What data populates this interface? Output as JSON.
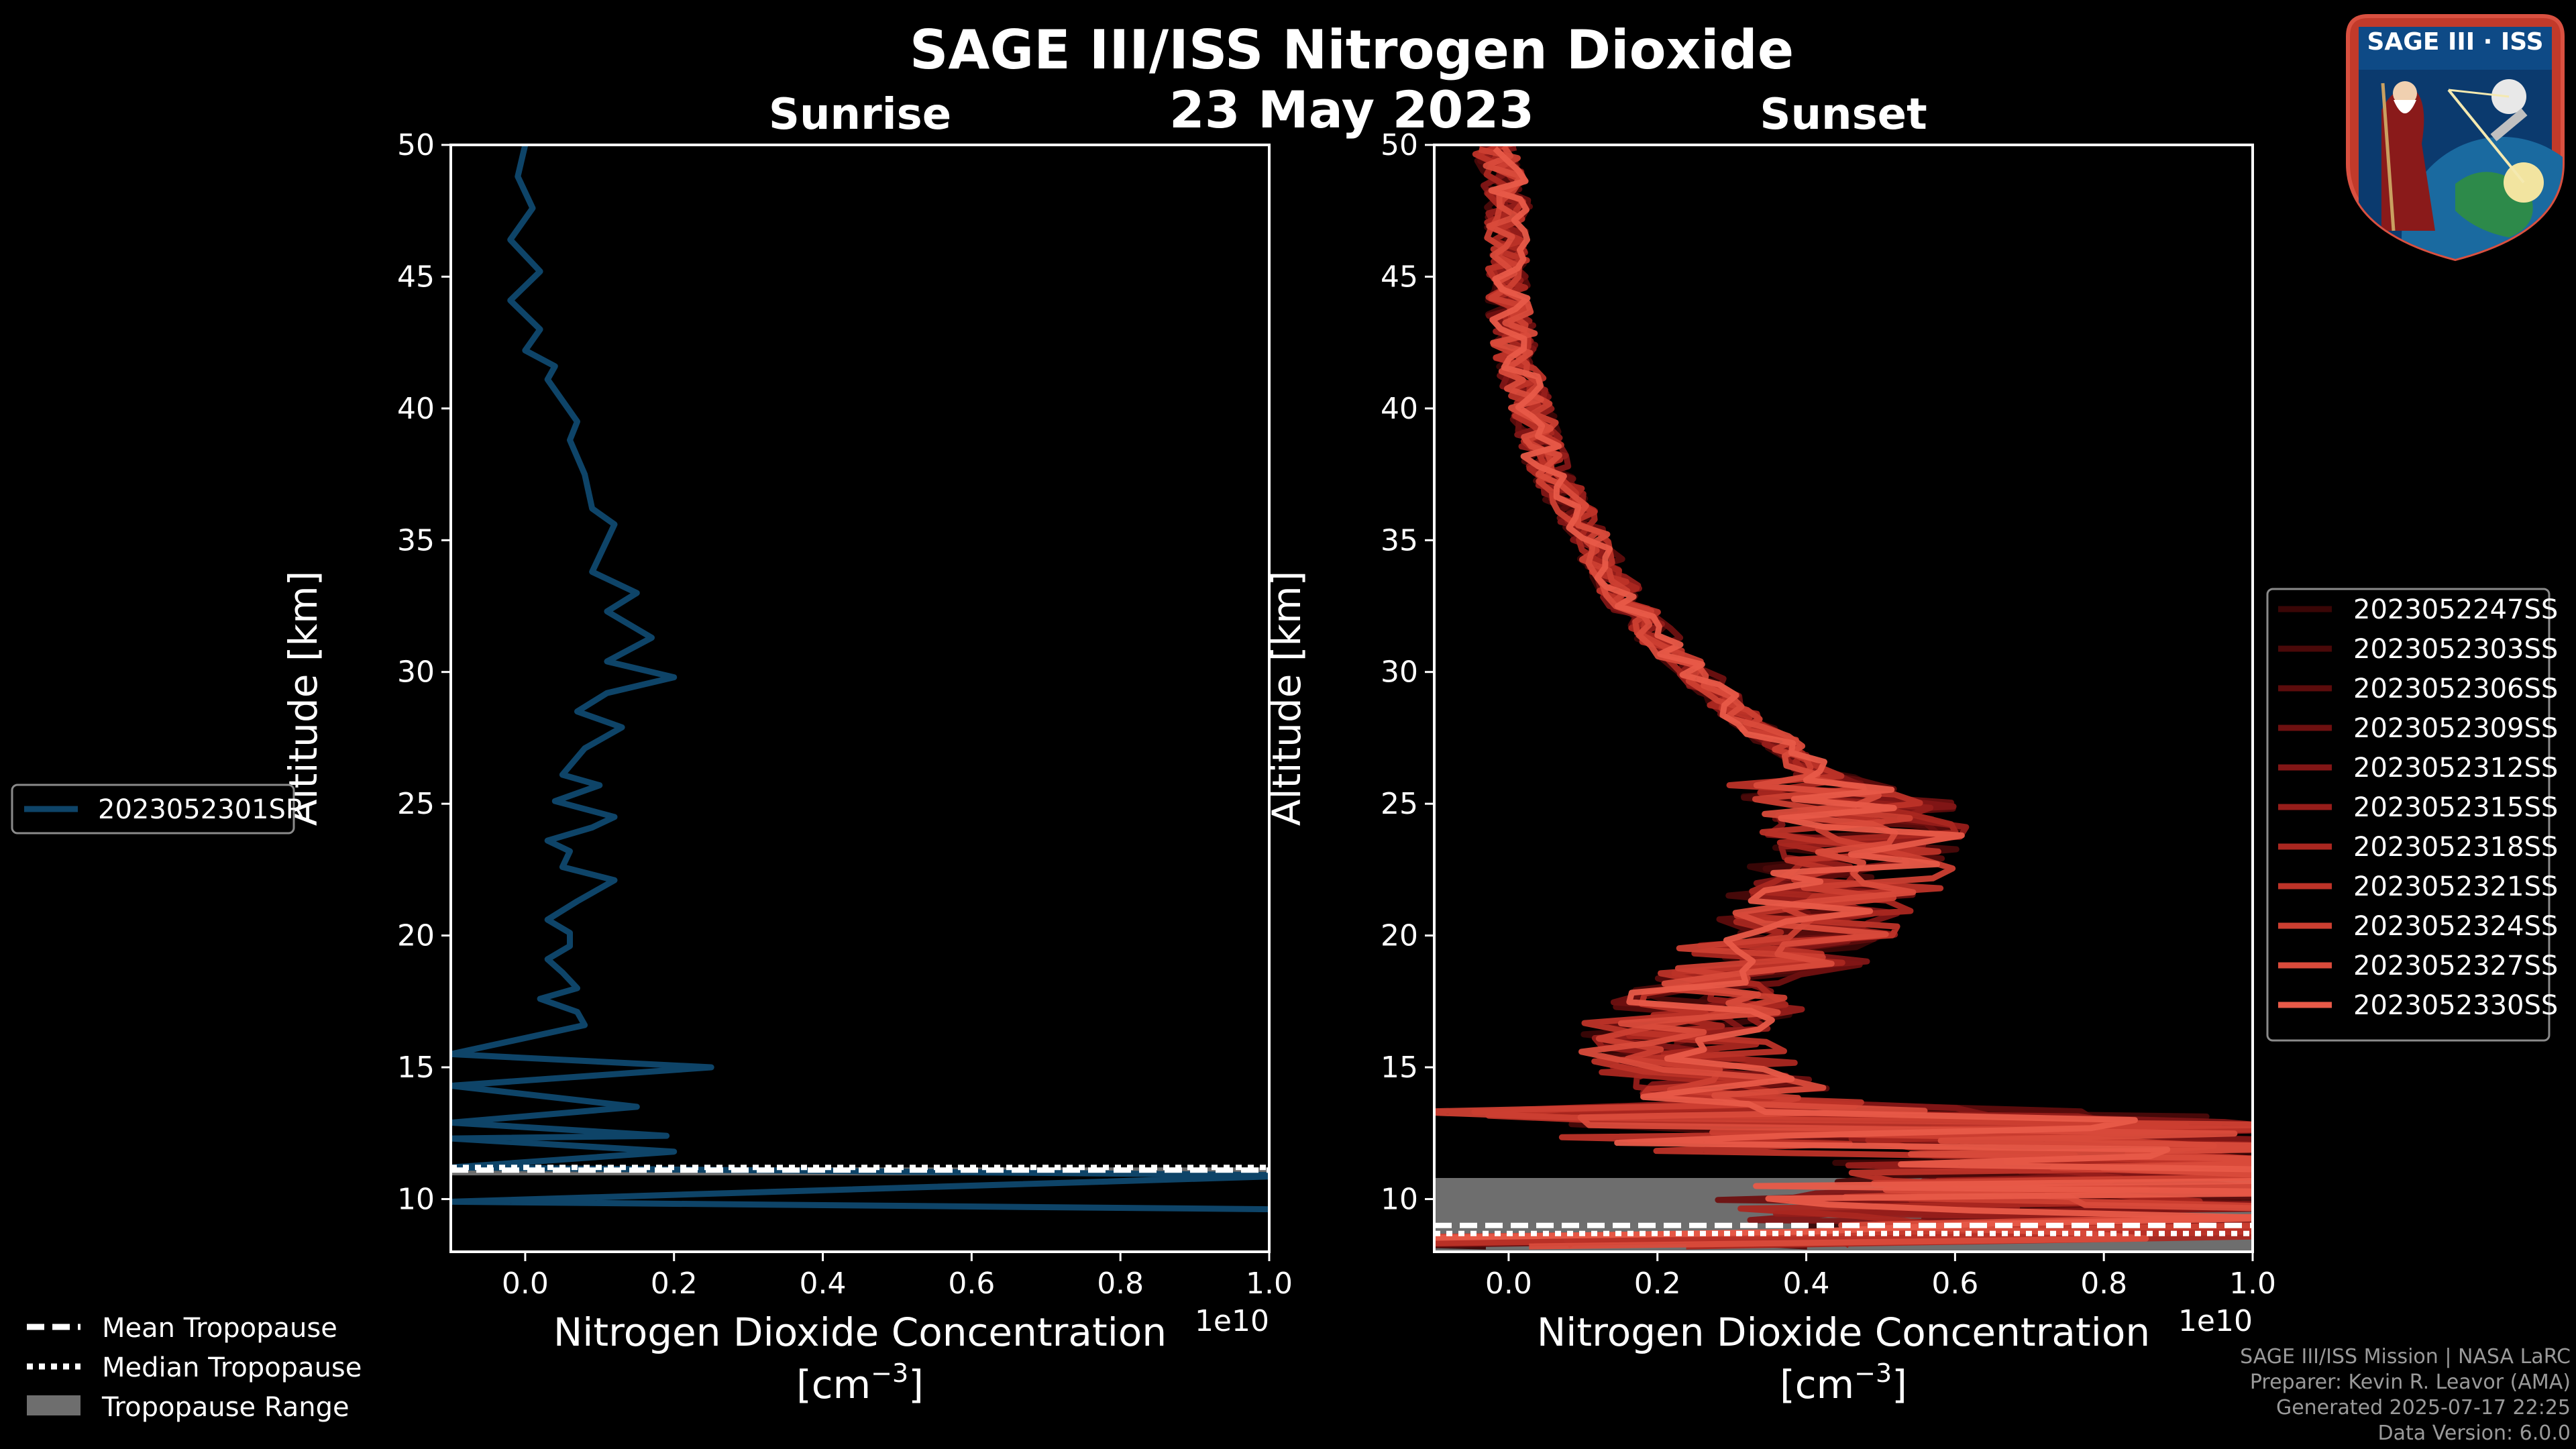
{
  "title": "SAGE III/ISS Nitrogen Dioxide",
  "subtitle": "23 May 2023",
  "footer": {
    "line1": "SAGE III/ISS Mission | NASA LaRC",
    "line2": "Preparer: Kevin R. Leavor (AMA)",
    "line3": "Generated 2025-07-17 22:25",
    "line4": "Data Version: 6.0.0"
  },
  "logo": {
    "badge_text": "SAGE III · ISS"
  },
  "tropopause_legend": {
    "mean": "Mean Tropopause",
    "median": "Median Tropopause",
    "range": "Tropopause Range"
  },
  "colors": {
    "background": "#000000",
    "sunrise_line": "#0e4468",
    "tropopause_range": "#6e6e6e",
    "sunset_palette": [
      "#3a0606",
      "#4a0909",
      "#5c0c0c",
      "#6e1010",
      "#821616",
      "#961d1a",
      "#aa2720",
      "#bd3328",
      "#cc3f31",
      "#d94b3b",
      "#e85a48"
    ]
  },
  "chart_data": [
    {
      "type": "line",
      "panel": "Sunrise",
      "title": "Sunrise",
      "xlabel": "Nitrogen Dioxide Concentration",
      "xlabel_units": "[cm",
      "xlabel_exp": "−3",
      "xlabel_close": "]",
      "ylabel": "Altitude [km]",
      "x_offset_label": "1e10",
      "xlim": [
        -0.1,
        1.0
      ],
      "ylim": [
        8,
        50
      ],
      "xticks": [
        0.0,
        0.2,
        0.4,
        0.6,
        0.8,
        1.0
      ],
      "xtick_labels": [
        "0.0",
        "0.2",
        "0.4",
        "0.6",
        "0.8",
        "1.0"
      ],
      "yticks": [
        10,
        15,
        20,
        25,
        30,
        35,
        40,
        45,
        50
      ],
      "ytick_labels": [
        "10",
        "15",
        "20",
        "25",
        "30",
        "35",
        "40",
        "45",
        "50"
      ],
      "series": [
        {
          "name": "2023052301SR",
          "x": [
            1.05,
            -0.1,
            1.05,
            -0.1,
            0.2,
            -0.1,
            0.19,
            -0.1,
            0.15,
            -0.1,
            0.25,
            -0.1,
            0.08,
            0.07,
            0.02,
            0.07,
            0.05,
            0.03,
            0.06,
            0.06,
            0.03,
            0.07,
            0.12,
            0.05,
            0.06,
            0.03,
            0.09,
            0.12,
            0.04,
            0.1,
            0.05,
            0.08,
            0.13,
            0.07,
            0.11,
            0.2,
            0.11,
            0.17,
            0.11,
            0.15,
            0.09,
            0.11,
            0.12,
            0.09,
            0.08,
            0.06,
            0.07,
            0.03,
            0.04,
            0.0,
            0.02,
            -0.02,
            0.02,
            -0.02,
            0.01,
            -0.01,
            0.0
          ],
          "y": [
            9.6,
            9.9,
            10.9,
            11.2,
            11.8,
            12.3,
            12.4,
            12.9,
            13.5,
            14.3,
            15.0,
            15.5,
            16.6,
            17.1,
            17.6,
            18.0,
            18.6,
            19.1,
            19.6,
            20.1,
            20.6,
            21.3,
            22.1,
            22.6,
            23.2,
            23.6,
            24.1,
            24.5,
            25.1,
            25.7,
            26.1,
            27.1,
            27.9,
            28.5,
            29.2,
            29.8,
            30.4,
            31.3,
            32.3,
            33.0,
            33.8,
            35.0,
            35.6,
            36.2,
            37.5,
            38.8,
            39.5,
            41.1,
            41.6,
            42.2,
            43.0,
            44.1,
            45.2,
            46.4,
            47.6,
            48.8,
            50.0
          ],
          "color": "#0e4468"
        }
      ],
      "legend_position": "left",
      "tropopause": {
        "mean": 11.1,
        "median": 11.2,
        "range": [
          10.9,
          11.2
        ]
      }
    },
    {
      "type": "line",
      "panel": "Sunset",
      "title": "Sunset",
      "xlabel": "Nitrogen Dioxide Concentration",
      "xlabel_units": "[cm",
      "xlabel_exp": "−3",
      "xlabel_close": "]",
      "ylabel": "Altitude [km]",
      "x_offset_label": "1e10",
      "xlim": [
        -0.1,
        1.0
      ],
      "ylim": [
        8,
        50
      ],
      "xticks": [
        0.0,
        0.2,
        0.4,
        0.6,
        0.8,
        1.0
      ],
      "xtick_labels": [
        "0.0",
        "0.2",
        "0.4",
        "0.6",
        "0.8",
        "1.0"
      ],
      "yticks": [
        10,
        15,
        20,
        25,
        30,
        35,
        40,
        45,
        50
      ],
      "ytick_labels": [
        "10",
        "15",
        "20",
        "25",
        "30",
        "35",
        "40",
        "45",
        "50"
      ],
      "base_profile": {
        "alt": [
          8.5,
          10,
          11,
          12,
          13,
          14,
          15,
          16,
          17,
          18,
          19,
          20,
          21,
          22,
          23,
          24,
          25,
          26,
          27,
          28,
          29,
          30,
          31,
          32,
          33,
          34,
          35,
          36,
          37,
          38,
          39,
          40,
          41,
          42,
          43,
          44,
          45,
          46,
          47,
          48,
          49,
          50
        ],
        "conc": [
          0.9,
          0.8,
          0.95,
          0.7,
          0.45,
          0.3,
          0.25,
          0.22,
          0.25,
          0.3,
          0.35,
          0.38,
          0.42,
          0.45,
          0.47,
          0.48,
          0.46,
          0.42,
          0.38,
          0.33,
          0.29,
          0.25,
          0.21,
          0.18,
          0.15,
          0.13,
          0.11,
          0.09,
          0.07,
          0.05,
          0.04,
          0.03,
          0.02,
          0.01,
          0.005,
          0.0,
          0.0,
          0.0,
          0.0,
          0.0,
          -0.01,
          -0.02
        ]
      },
      "series": [
        {
          "name": "2023052247SS",
          "color": "#3a0606"
        },
        {
          "name": "2023052303SS",
          "color": "#4a0909"
        },
        {
          "name": "2023052306SS",
          "color": "#5c0c0c"
        },
        {
          "name": "2023052309SS",
          "color": "#6e1010"
        },
        {
          "name": "2023052312SS",
          "color": "#821616"
        },
        {
          "name": "2023052315SS",
          "color": "#961d1a"
        },
        {
          "name": "2023052318SS",
          "color": "#aa2720"
        },
        {
          "name": "2023052321SS",
          "color": "#bd3328"
        },
        {
          "name": "2023052324SS",
          "color": "#cc3f31"
        },
        {
          "name": "2023052327SS",
          "color": "#d94b3b"
        },
        {
          "name": "2023052330SS",
          "color": "#e85a48"
        }
      ],
      "legend_position": "right",
      "tropopause": {
        "mean": 9.0,
        "median": 9.0,
        "range": [
          8.0,
          10.8
        ]
      }
    }
  ]
}
